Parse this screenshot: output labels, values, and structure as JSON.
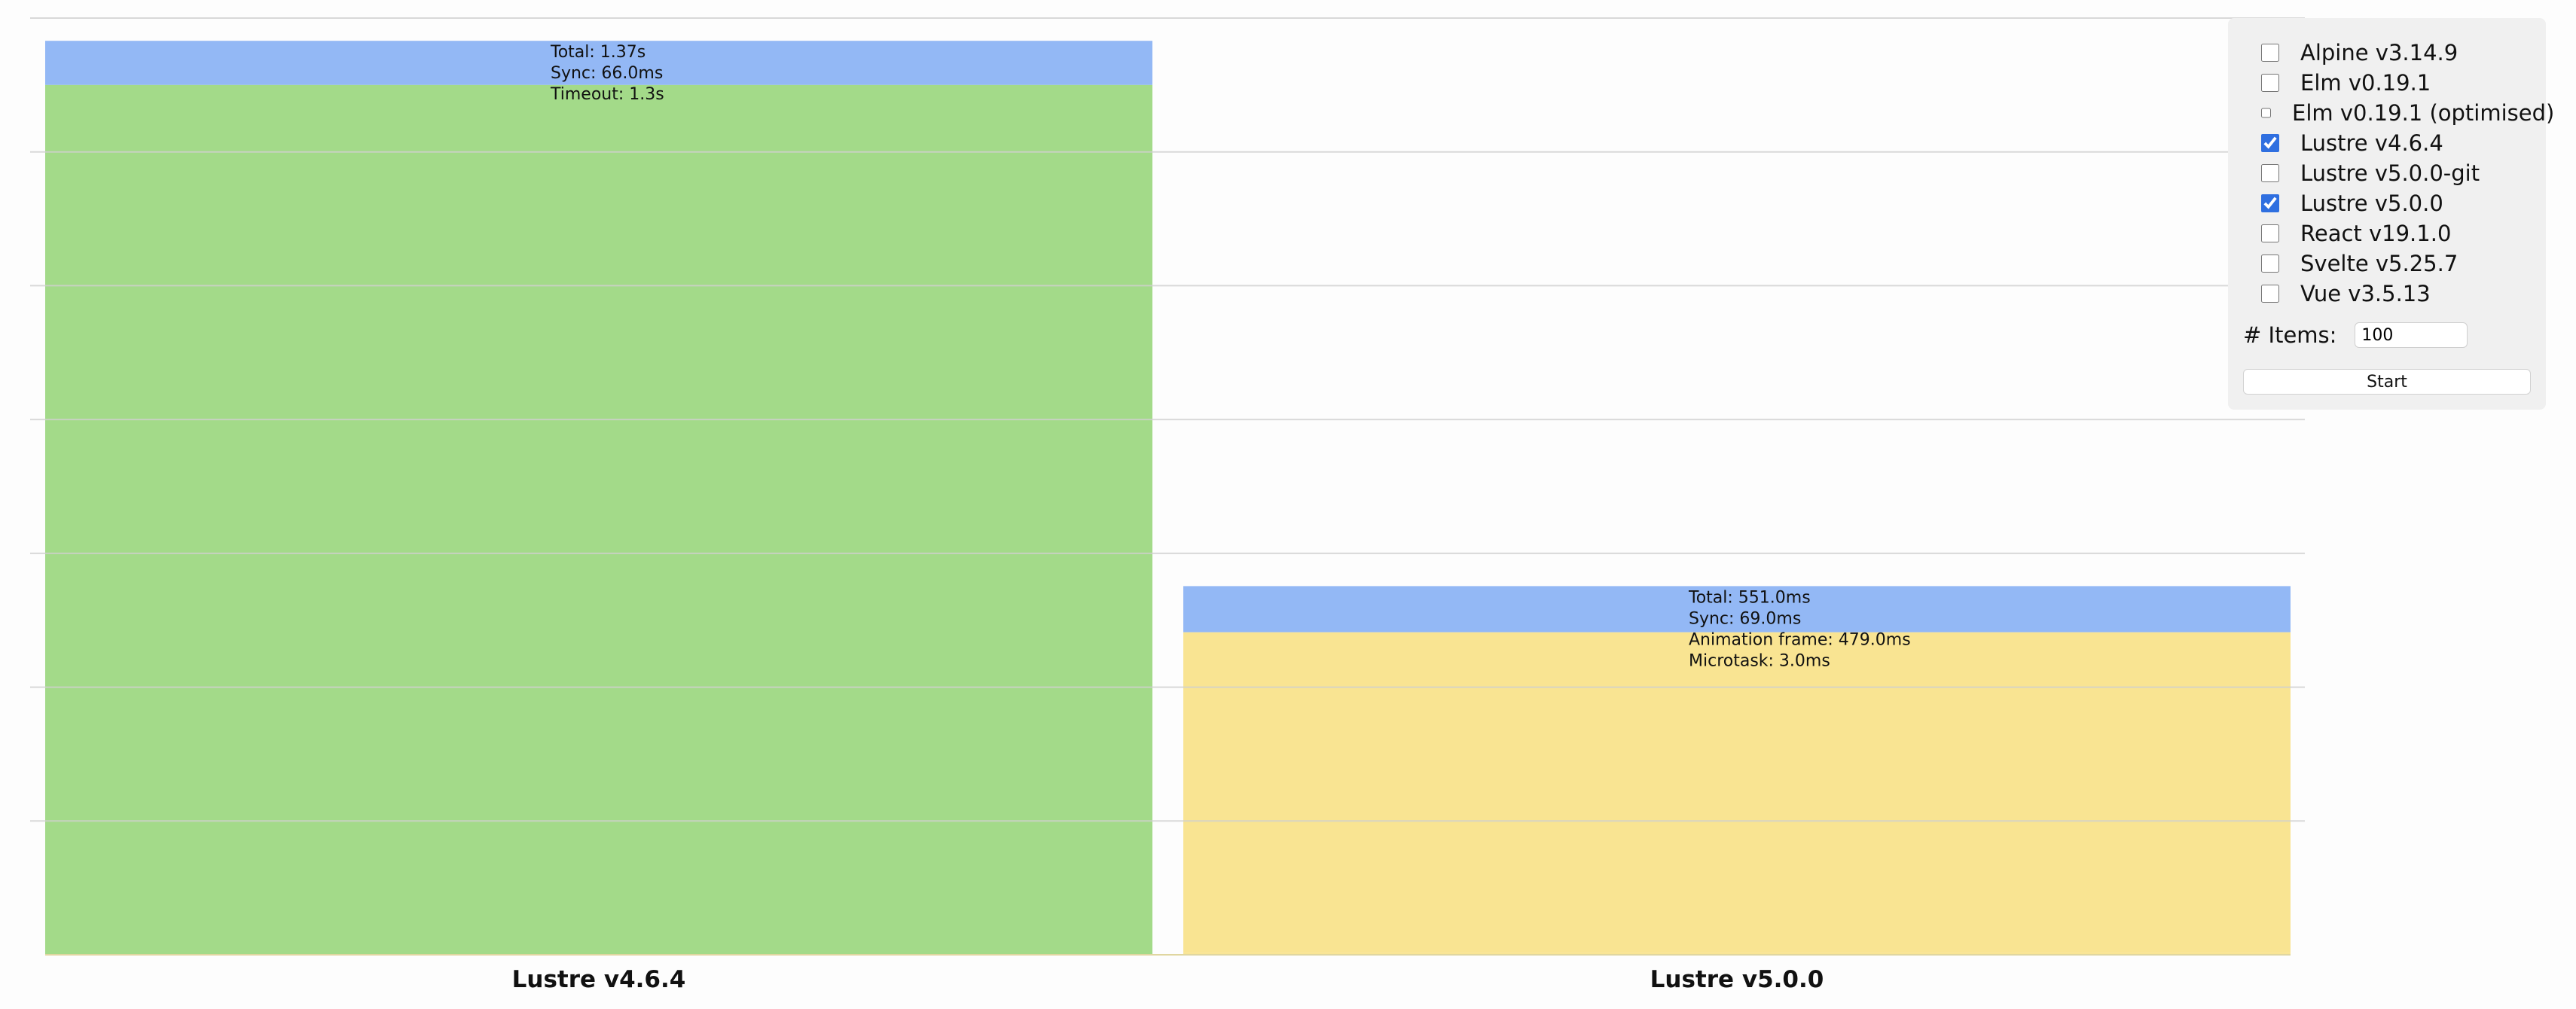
{
  "chart_data": {
    "type": "bar",
    "stacked": true,
    "unit": "ms",
    "ylim": [
      0,
      1400
    ],
    "grid": true,
    "yticks": [
      200,
      400,
      600,
      800,
      1000,
      1200
    ],
    "categories": [
      "Lustre v4.6.4",
      "Lustre v5.0.0"
    ],
    "bars": [
      {
        "name": "Lustre v4.6.4",
        "total": 1370,
        "segments": [
          {
            "name": "Sync",
            "value": 66,
            "color": "#93b8f5"
          },
          {
            "name": "Timeout",
            "value": 1300,
            "color": "#a3da89"
          }
        ],
        "labels": [
          "Total: 1.37s",
          "Sync: 66.0ms",
          "Timeout: 1.3s"
        ]
      },
      {
        "name": "Lustre v5.0.0",
        "total": 551,
        "segments": [
          {
            "name": "Sync",
            "value": 69,
            "color": "#93b8f5"
          },
          {
            "name": "Animation frame",
            "value": 479,
            "color": "#f9e492"
          },
          {
            "name": "Microtask",
            "value": 3,
            "color": "#f9e492"
          }
        ],
        "labels": [
          "Total: 551.0ms",
          "Sync: 69.0ms",
          "Animation frame: 479.0ms",
          "Microtask: 3.0ms"
        ]
      }
    ],
    "gridColor": "#d0d0d0"
  },
  "controls": {
    "frameworks": [
      {
        "label": "Alpine v3.14.9",
        "checked": false
      },
      {
        "label": "Elm v0.19.1",
        "checked": false
      },
      {
        "label": "Elm v0.19.1 (optimised)",
        "checked": false
      },
      {
        "label": "Lustre v4.6.4",
        "checked": true
      },
      {
        "label": "Lustre v5.0.0-git",
        "checked": false
      },
      {
        "label": "Lustre v5.0.0",
        "checked": true
      },
      {
        "label": "React v19.1.0",
        "checked": false
      },
      {
        "label": "Svelte v5.25.7",
        "checked": false
      },
      {
        "label": "Vue v3.5.13",
        "checked": false
      }
    ],
    "items_label": "# Items:",
    "items_value": "100",
    "start_label": "Start"
  }
}
